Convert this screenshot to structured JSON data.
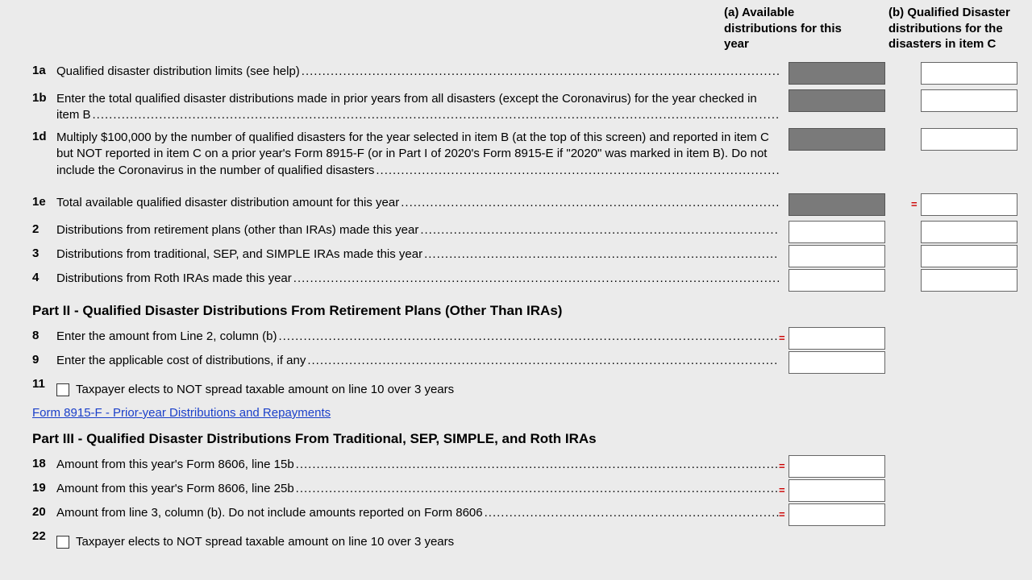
{
  "columns": {
    "a": "(a) Available distributions for this year",
    "b": "(b) Qualified Disaster distributions for the disasters in item C"
  },
  "lines": {
    "l1a": {
      "num": "1a",
      "text": "Qualified disaster distribution limits (see help)"
    },
    "l1b": {
      "num": "1b",
      "text": "Enter the total qualified disaster distributions made in prior years from all disasters (except the Coronavirus) for the year checked in item B"
    },
    "l1d": {
      "num": "1d",
      "text": "Multiply $100,000 by the number of qualified disasters for the year selected in item B (at the top of this screen) and reported in item C but NOT reported in item C on a prior year's Form 8915-F (or in Part I of 2020's Form 8915-E if \"2020\" was marked in item B). Do not include the Coronavirus in the number of qualified disasters"
    },
    "l1e": {
      "num": "1e",
      "text": "Total available qualified disaster distribution amount for this year"
    },
    "l2": {
      "num": "2",
      "text": "Distributions from retirement plans (other than IRAs) made this year"
    },
    "l3": {
      "num": "3",
      "text": "Distributions from traditional, SEP, and SIMPLE IRAs made this year"
    },
    "l4": {
      "num": "4",
      "text": "Distributions from Roth IRAs made this year"
    },
    "l8": {
      "num": "8",
      "text": "Enter the amount from Line 2, column (b)"
    },
    "l9": {
      "num": "9",
      "text": "Enter the applicable cost of distributions, if any"
    },
    "l11": {
      "num": "11",
      "text": "Taxpayer elects to NOT spread taxable amount on line 10 over 3 years"
    },
    "l18": {
      "num": "18",
      "text": "Amount from this year's Form 8606, line 15b"
    },
    "l19": {
      "num": "19",
      "text": "Amount from this year's Form 8606, line 25b"
    },
    "l20": {
      "num": "20",
      "text": "Amount from line 3, column (b). Do not include amounts reported on Form 8606"
    },
    "l22": {
      "num": "22",
      "text": "Taxpayer elects to NOT spread taxable amount on line 10 over 3 years"
    }
  },
  "sections": {
    "part2": "Part II - Qualified Disaster Distributions From Retirement Plans (Other Than IRAs)",
    "part3": "Part III - Qualified Disaster Distributions From Traditional, SEP, SIMPLE, and Roth IRAs"
  },
  "link": "Form 8915-F - Prior-year Distributions and Repayments"
}
